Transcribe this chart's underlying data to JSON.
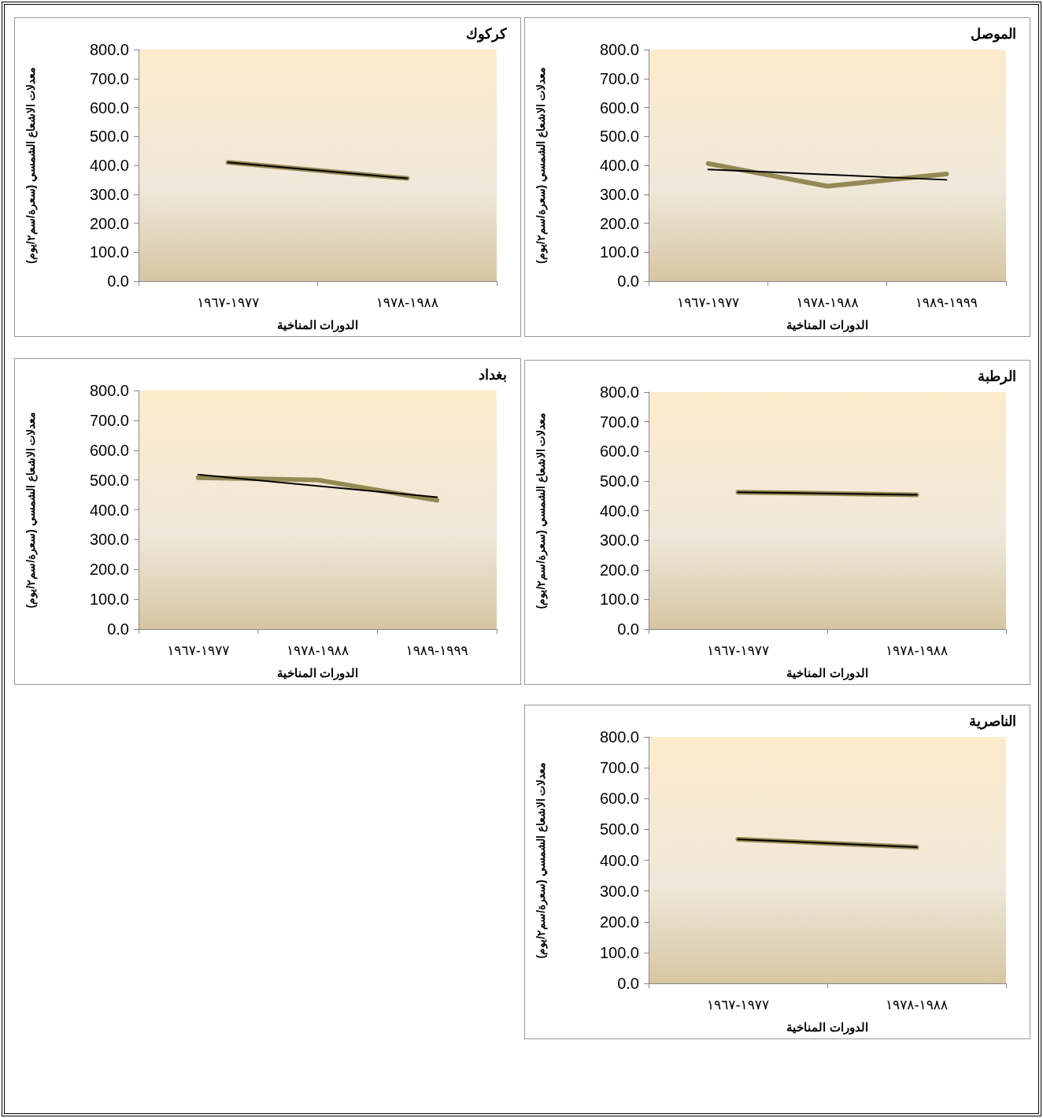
{
  "chart_data": [
    {
      "type": "line",
      "title": "كركوك",
      "xlabel": "الدورات المناخية",
      "ylabel": "معدلات الاشعاع الشمسي (سعرة/سم٢/يوم)",
      "categories": [
        "١٩٦٧-١٩٧٧",
        "١٩٧٨-١٩٨٨"
      ],
      "series": [
        {
          "color": "#938953",
          "values": [
            410,
            355
          ]
        },
        {
          "color": "#000000",
          "values": [
            410,
            355
          ]
        }
      ],
      "ylim": [
        0,
        800
      ],
      "yticks": [
        {
          "value": 0,
          "label": "0.0"
        },
        {
          "value": 100,
          "label": "100.0"
        },
        {
          "value": 200,
          "label": "200.0"
        },
        {
          "value": 300,
          "label": "300.0"
        },
        {
          "value": 400,
          "label": "400.0"
        },
        {
          "value": 500,
          "label": "500.0"
        },
        {
          "value": 600,
          "label": "600.0"
        },
        {
          "value": 700,
          "label": "700.0"
        },
        {
          "value": 800,
          "label": "800.0"
        }
      ],
      "grid": false,
      "marker": "none"
    },
    {
      "type": "line",
      "title": "الموصل",
      "xlabel": "الدورات المناخية",
      "ylabel": "معدلات الاشعاع الشمسي (سعرة/سم٢/يوم)",
      "categories": [
        "١٩٦٧-١٩٧٧",
        "١٩٧٨-١٩٨٨",
        "١٩٨٩-١٩٩٩"
      ],
      "series": [
        {
          "color": "#938953",
          "values": [
            406,
            328,
            370
          ]
        },
        {
          "color": "#000000",
          "values": [
            386,
            368,
            350
          ]
        }
      ],
      "ylim": [
        0,
        800
      ],
      "yticks": [
        {
          "value": 0,
          "label": "0.0"
        },
        {
          "value": 100,
          "label": "100.0"
        },
        {
          "value": 200,
          "label": "200.0"
        },
        {
          "value": 300,
          "label": "300.0"
        },
        {
          "value": 400,
          "label": "400.0"
        },
        {
          "value": 500,
          "label": "500.0"
        },
        {
          "value": 600,
          "label": "600.0"
        },
        {
          "value": 700,
          "label": "700.0"
        },
        {
          "value": 800,
          "label": "800.0"
        }
      ],
      "grid": false,
      "marker": "none"
    },
    {
      "type": "line",
      "title": "بغداد",
      "xlabel": "الدورات المناخية",
      "ylabel": "معدلات الاشعاع الشمسي (سعرة/سم٢/يوم)",
      "categories": [
        "١٩٦٧-١٩٧٧",
        "١٩٧٨-١٩٨٨",
        "١٩٨٩-١٩٩٩"
      ],
      "series": [
        {
          "color": "#938953",
          "values": [
            508,
            500,
            432
          ]
        },
        {
          "color": "#000000",
          "values": [
            518,
            480,
            442
          ]
        }
      ],
      "ylim": [
        0,
        800
      ],
      "yticks": [
        {
          "value": 0,
          "label": "0.0"
        },
        {
          "value": 100,
          "label": "100.0"
        },
        {
          "value": 200,
          "label": "200.0"
        },
        {
          "value": 300,
          "label": "300.0"
        },
        {
          "value": 400,
          "label": "400.0"
        },
        {
          "value": 500,
          "label": "500.0"
        },
        {
          "value": 600,
          "label": "600.0"
        },
        {
          "value": 700,
          "label": "700.0"
        },
        {
          "value": 800,
          "label": "800.0"
        }
      ],
      "grid": false,
      "marker": "none"
    },
    {
      "type": "line",
      "title": "الرطبة",
      "xlabel": "الدورات المناخية",
      "ylabel": "معدلات الاشعاع الشمسي (سعرة/سم٢/يوم)",
      "categories": [
        "١٩٦٧-١٩٧٧",
        "١٩٧٨-١٩٨٨"
      ],
      "series": [
        {
          "color": "#938953",
          "values": [
            462,
            453
          ]
        },
        {
          "color": "#000000",
          "values": [
            462,
            453
          ]
        }
      ],
      "ylim": [
        0,
        800
      ],
      "yticks": [
        {
          "value": 0,
          "label": "0.0"
        },
        {
          "value": 100,
          "label": "100.0"
        },
        {
          "value": 200,
          "label": "200.0"
        },
        {
          "value": 300,
          "label": "300.0"
        },
        {
          "value": 400,
          "label": "400.0"
        },
        {
          "value": 500,
          "label": "500.0"
        },
        {
          "value": 600,
          "label": "600.0"
        },
        {
          "value": 700,
          "label": "700.0"
        },
        {
          "value": 800,
          "label": "800.0"
        }
      ],
      "grid": false,
      "marker": "none"
    },
    {
      "type": "line",
      "title": "الناصرية",
      "xlabel": "الدورات المناخية",
      "ylabel": "معدلات الاشعاع الشمسي (سعرة/سم٢/يوم)",
      "categories": [
        "١٩٦٧-١٩٧٧",
        "١٩٧٨-١٩٨٨"
      ],
      "series": [
        {
          "color": "#938953",
          "values": [
            468,
            442
          ]
        },
        {
          "color": "#000000",
          "values": [
            468,
            442
          ]
        }
      ],
      "ylim": [
        0,
        800
      ],
      "yticks": [
        {
          "value": 0,
          "label": "0.0"
        },
        {
          "value": 100,
          "label": "100.0"
        },
        {
          "value": 200,
          "label": "200.0"
        },
        {
          "value": 300,
          "label": "300.0"
        },
        {
          "value": 400,
          "label": "400.0"
        },
        {
          "value": 500,
          "label": "500.0"
        },
        {
          "value": 600,
          "label": "600.0"
        },
        {
          "value": 700,
          "label": "700.0"
        },
        {
          "value": 800,
          "label": "800.0"
        }
      ],
      "grid": false,
      "marker": "none"
    }
  ]
}
